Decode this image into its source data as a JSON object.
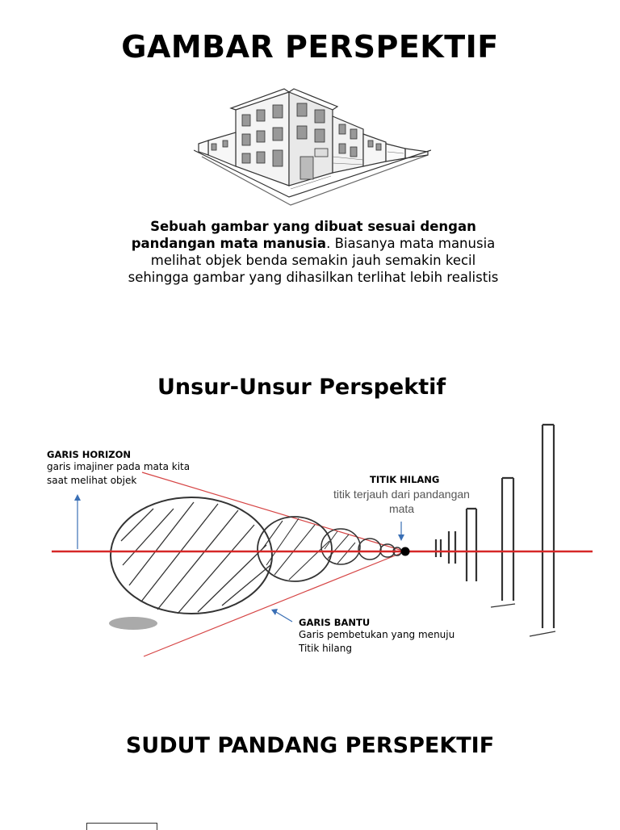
{
  "page": {
    "title": "GAMBAR PERSPEKTIF",
    "description": {
      "bold_part": "Sebuah gambar yang dibuat sesuai dengan pandangan mata manusia",
      "rest": ". Biasanya mata manusia melihat objek benda semakin jauh semakin kecil sehingga gambar yang dihasilkan terlihat lebih realistis"
    },
    "section1_title": "Unsur-Unsur Perspektif",
    "section2_title": "SUDUT PANDANG PERSPEKTIF"
  },
  "diagram": {
    "garis_horizon": {
      "title": "GARIS HORIZON",
      "line1": "garis imajiner pada mata kita",
      "line2": "saat melihat objek"
    },
    "titik_hilang": {
      "title": "TITIK HILANG",
      "line1": "titik terjauh dari pandangan",
      "line2": "mata"
    },
    "garis_bantu": {
      "title": "GARIS BANTU",
      "line1": "Garis pembetukan yang menuju",
      "line2": "Titik hilang"
    },
    "colors": {
      "horizon_line": "#d62828",
      "guide_lines": "#d64545",
      "arrow": "#3a6fb5",
      "sketch": "#333333"
    }
  }
}
